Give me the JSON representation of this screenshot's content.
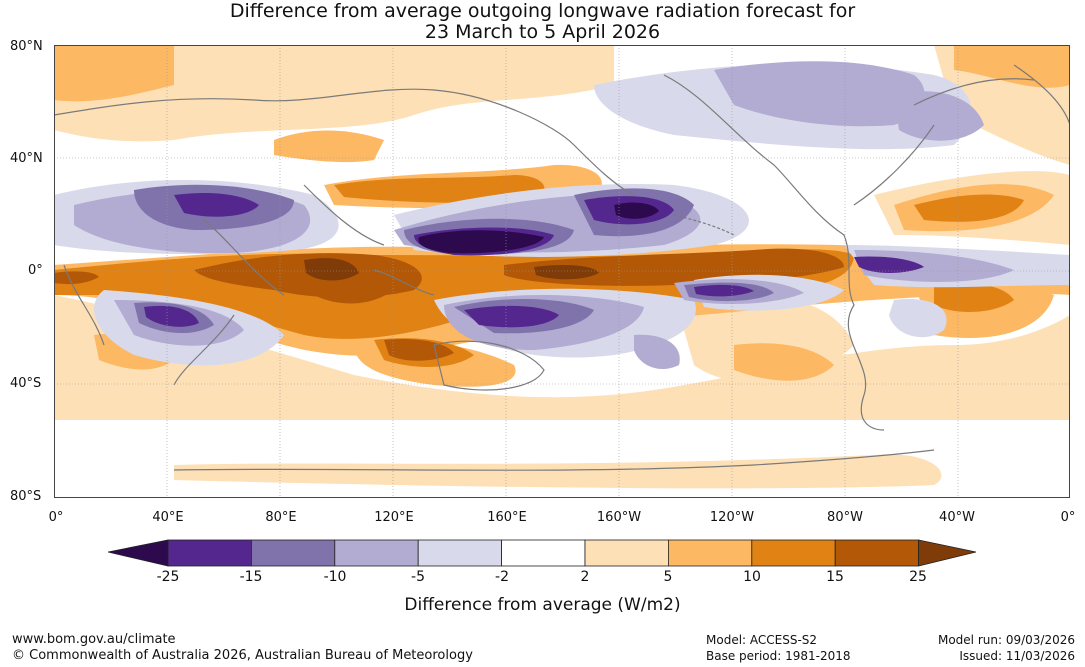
{
  "title": {
    "line1": "Difference from average outgoing longwave radiation forecast for",
    "line2": "23 March to 5 April 2026"
  },
  "map": {
    "lat_labels": [
      "80°N",
      "40°N",
      "0°",
      "40°S",
      "80°S"
    ],
    "lon_labels": [
      "0°",
      "40°E",
      "80°E",
      "120°E",
      "160°E",
      "160°W",
      "120°W",
      "80°W",
      "40°W",
      "0°"
    ]
  },
  "colorbar": {
    "ticks": [
      "-25",
      "-15",
      "-10",
      "-5",
      "-2",
      "2",
      "5",
      "10",
      "15",
      "25"
    ],
    "colors": [
      "#2d0a4e",
      "#54278f",
      "#8073ac",
      "#b2abd2",
      "#d8daeb",
      "#ffffff",
      "#fee0b6",
      "#fdb863",
      "#e08214",
      "#b35806",
      "#7f3b08"
    ],
    "label": "Difference from average (W/m2)"
  },
  "footer": {
    "url": "www.bom.gov.au/climate",
    "copyright": "© Commonwealth of Australia 2026, Australian Bureau of Meteorology",
    "model": "Model: ACCESS-S2",
    "base_period": "Base period: 1981-2018",
    "model_run": "Model run: 09/03/2026",
    "issued": "Issued: 11/03/2026"
  }
}
